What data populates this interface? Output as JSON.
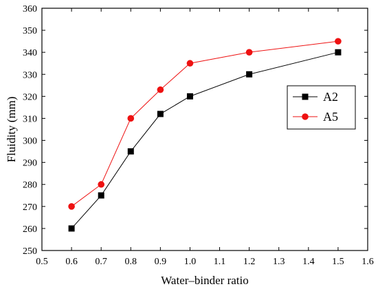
{
  "chart_data": {
    "type": "line",
    "xlabel": "Water–binder  ratio",
    "ylabel": "Fluidity (mm)",
    "xlim": [
      0.5,
      1.6
    ],
    "ylim": [
      250,
      360
    ],
    "xticks": [
      0.5,
      0.6,
      0.7,
      0.8,
      0.9,
      1.0,
      1.1,
      1.2,
      1.3,
      1.4,
      1.5,
      1.6
    ],
    "xtick_labels": [
      "0.5",
      "0.6",
      "0.7",
      "0.8",
      "0.9",
      "1.0",
      "1.1",
      "1.2",
      "1.3",
      "1.4",
      "1.5",
      "1.6"
    ],
    "yticks": [
      250,
      260,
      270,
      280,
      290,
      300,
      310,
      320,
      330,
      340,
      350,
      360
    ],
    "ytick_labels": [
      "250",
      "260",
      "270",
      "280",
      "290",
      "300",
      "310",
      "320",
      "330",
      "340",
      "350",
      "360"
    ],
    "grid": false,
    "legend_position": "right",
    "series": [
      {
        "name": "A2",
        "marker": "square",
        "color": "#000000",
        "x": [
          0.6,
          0.7,
          0.8,
          0.9,
          1.0,
          1.2,
          1.5
        ],
        "y": [
          260,
          275,
          295,
          312,
          320,
          330,
          340
        ]
      },
      {
        "name": "A5",
        "marker": "circle",
        "color": "#ee1111",
        "x": [
          0.6,
          0.7,
          0.8,
          0.9,
          1.0,
          1.2,
          1.5
        ],
        "y": [
          270,
          280,
          310,
          323,
          335,
          340,
          345
        ]
      }
    ]
  }
}
